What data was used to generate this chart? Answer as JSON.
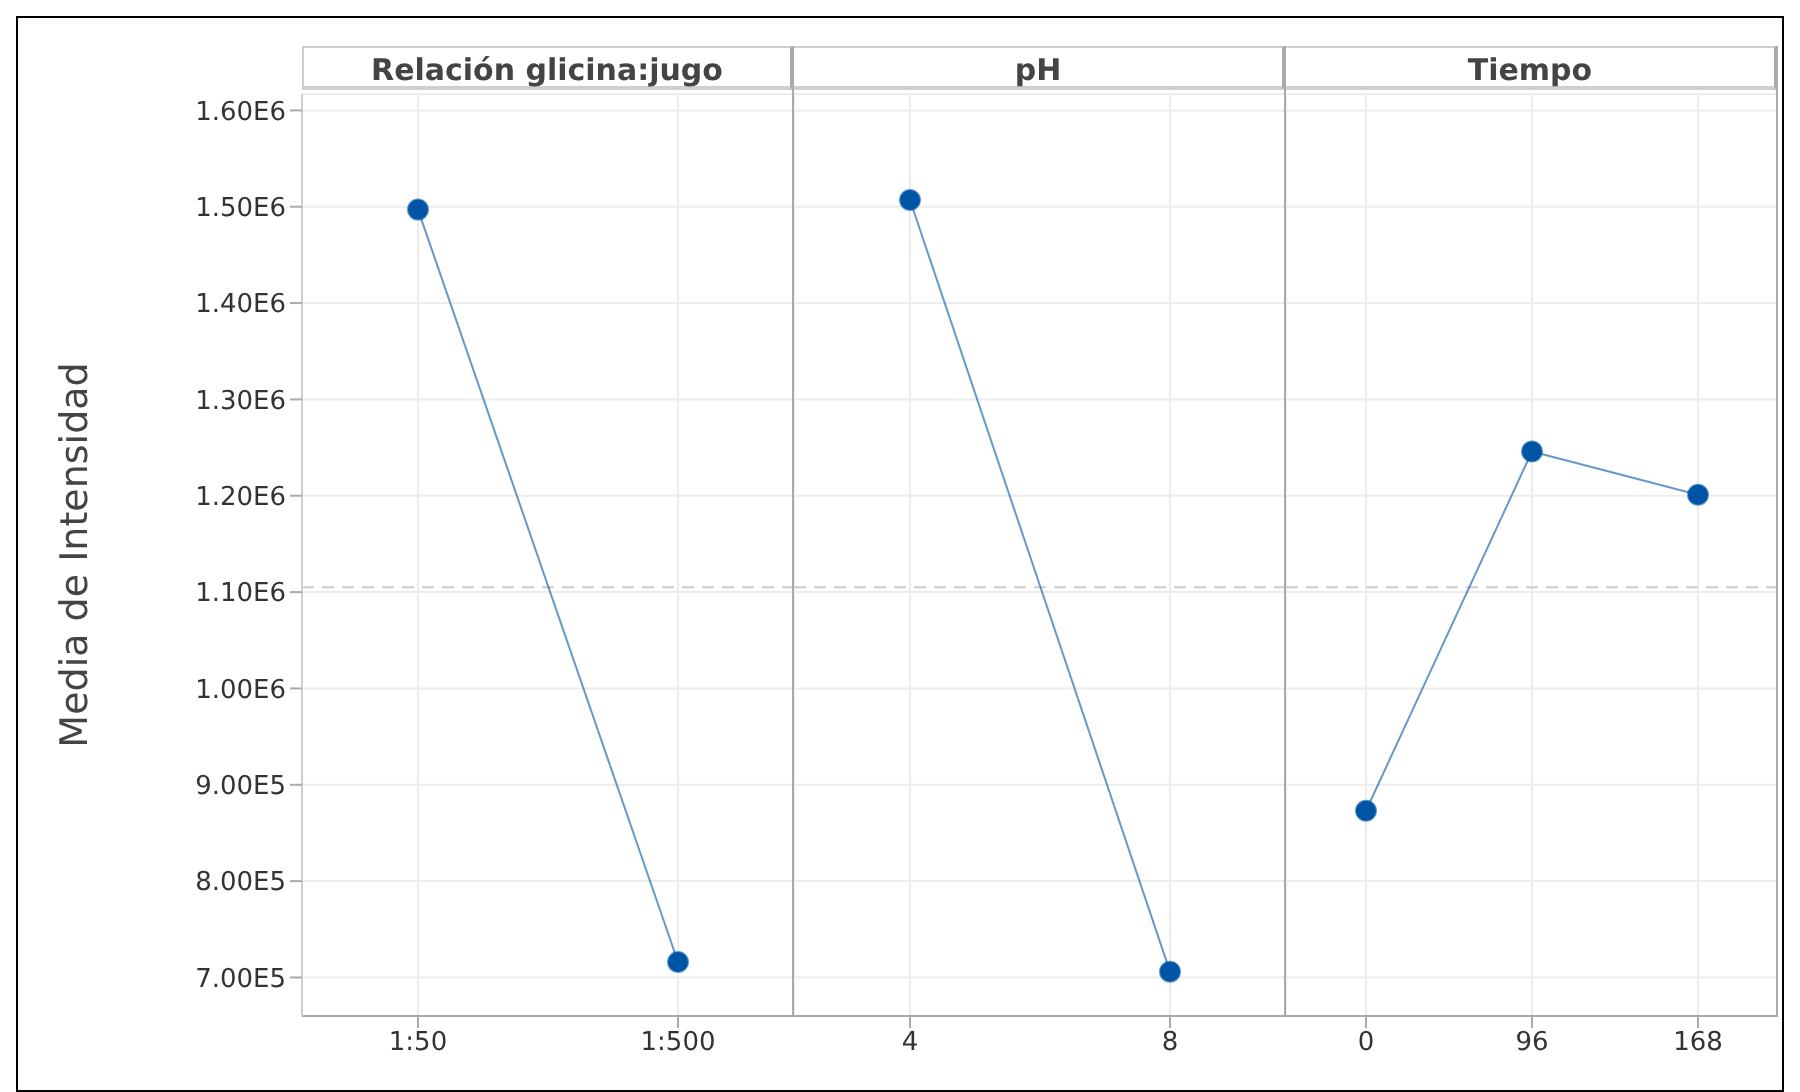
{
  "chart_data": [
    {
      "type": "line",
      "title": "Relación glicina:jugo",
      "ylabel": "Media de Intensidad",
      "categories": [
        "1:50",
        "1:500"
      ],
      "series": [
        {
          "color": "#0054a6",
          "values": [
            1497000,
            716000
          ]
        }
      ],
      "ylim": [
        660000,
        1617000
      ],
      "yticks": [
        {
          "value": 700000,
          "label": "7.00E5"
        },
        {
          "value": 800000,
          "label": "8.00E5"
        },
        {
          "value": 900000,
          "label": "9.00E5"
        },
        {
          "value": 1000000,
          "label": "1.00E6"
        },
        {
          "value": 1100000,
          "label": "1.10E6"
        },
        {
          "value": 1200000,
          "label": "1.20E6"
        },
        {
          "value": 1300000,
          "label": "1.30E6"
        },
        {
          "value": 1400000,
          "label": "1.40E6"
        },
        {
          "value": 1500000,
          "label": "1.50E6"
        },
        {
          "value": 1600000,
          "label": "1.60E6"
        }
      ],
      "ref_lines": [
        {
          "axis": "y",
          "value": 1105000,
          "color": "#cccccc",
          "line_style": "dashed"
        }
      ],
      "grid": true,
      "marker": "circle",
      "line_style": "solid"
    },
    {
      "type": "line",
      "title": "pH",
      "categories": [
        "4",
        "8"
      ],
      "series": [
        {
          "color": "#0054a6",
          "values": [
            1507000,
            706000
          ]
        }
      ],
      "ylim": [
        660000,
        1617000
      ],
      "yticks": [
        700000,
        800000,
        900000,
        1000000,
        1100000,
        1200000,
        1300000,
        1400000,
        1500000,
        1600000
      ],
      "ref_lines": [
        {
          "axis": "y",
          "value": 1105000,
          "color": "#cccccc",
          "line_style": "dashed"
        }
      ],
      "grid": true,
      "marker": "circle",
      "line_style": "solid",
      "tick_labels": "x"
    },
    {
      "type": "line",
      "title": "Tiempo",
      "categories": [
        "0",
        "96",
        "168"
      ],
      "series": [
        {
          "color": "#0054a6",
          "values": [
            873000,
            1246000,
            1201000
          ]
        }
      ],
      "ylim": [
        660000,
        1617000
      ],
      "yticks": [
        700000,
        800000,
        900000,
        1000000,
        1100000,
        1200000,
        1300000,
        1400000,
        1500000,
        1600000
      ],
      "ref_lines": [
        {
          "axis": "y",
          "value": 1105000,
          "color": "#cccccc",
          "line_style": "dashed"
        }
      ],
      "grid": true,
      "marker": "circle",
      "line_style": "solid",
      "tick_labels": "x"
    }
  ]
}
